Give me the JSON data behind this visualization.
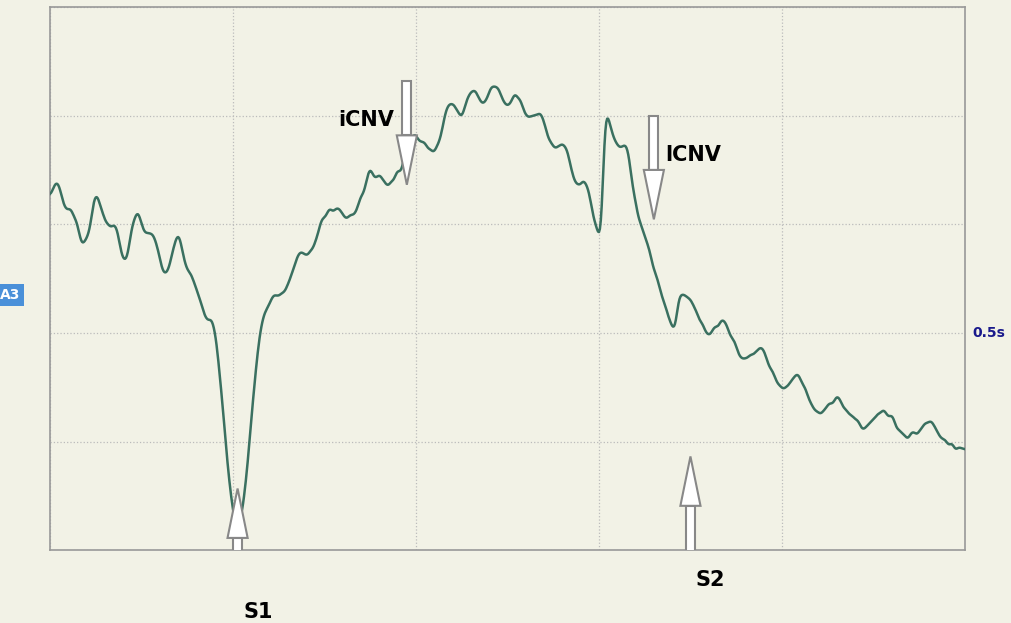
{
  "background_color": "#f2f2e6",
  "plot_bg_color": "#f2f2e6",
  "border_color": "#999999",
  "grid_color": "#bbbbbb",
  "line_color": "#3a7060",
  "line_width": 1.8,
  "label_A3": "A3",
  "label_A3_color": "#4a90d9",
  "label_05s": "0.5s",
  "label_05s_color": "#1a1a8c",
  "icnv_label": "iCNV",
  "lcnv_label": "lCNV",
  "s1_label": "S1",
  "s2_label": "S2",
  "xlim": [
    0,
    1000
  ],
  "ylim": [
    -110,
    110
  ],
  "figsize": [
    10.11,
    6.23
  ],
  "dpi": 100,
  "arrow_facecolor": "white",
  "arrow_edgecolor": "#888888",
  "arrow_lw": 1.5
}
